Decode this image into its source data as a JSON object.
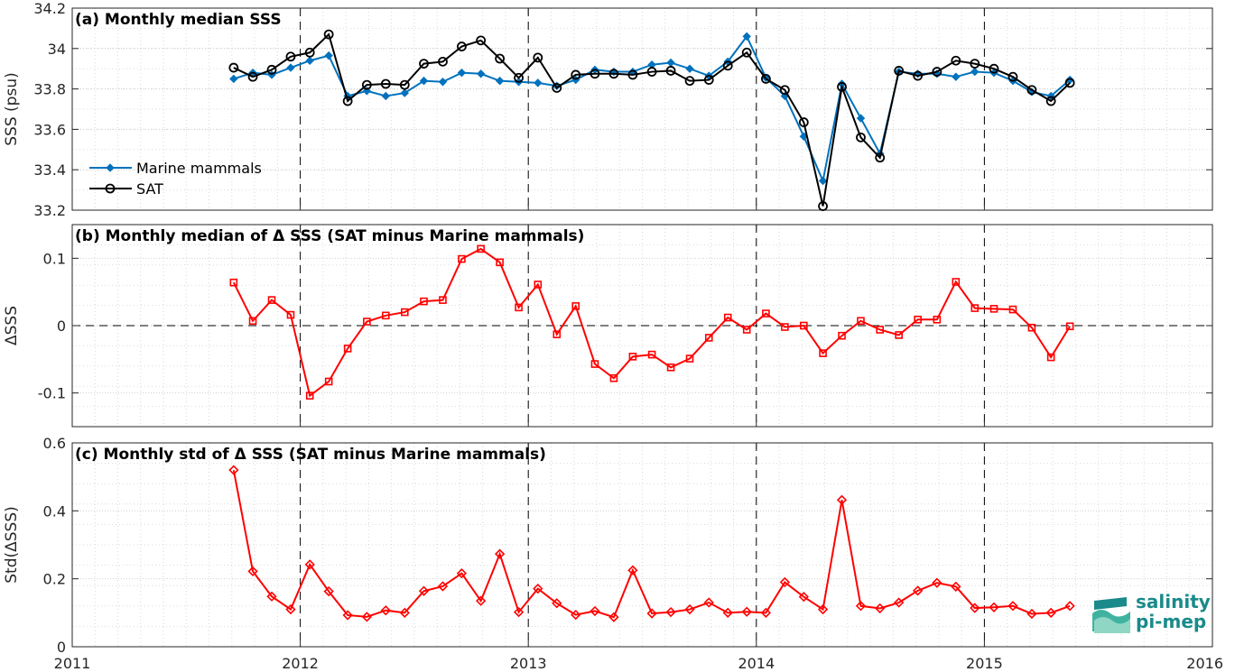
{
  "colors": {
    "marine": "#0072bd",
    "sat": "#000000",
    "delta": "#ff0000",
    "logo": "#1a8a8a"
  },
  "legend": {
    "marine": "Marine mammals",
    "sat": "SAT"
  },
  "logo": {
    "line1": "salinity",
    "line2": "pi-mep"
  },
  "x_axis": {
    "range": [
      2011,
      2016
    ],
    "ticks": [
      "2011",
      "2012",
      "2013",
      "2014",
      "2015",
      "2016"
    ],
    "year_lines": [
      2012,
      2013,
      2014,
      2015
    ]
  },
  "chart_data": [
    {
      "type": "line",
      "panel": "a",
      "title": "(a) Monthly median SSS",
      "ylabel": "SSS (psu)",
      "ylim": [
        33.2,
        34.2
      ],
      "yticks": [
        "33.2",
        "33.4",
        "33.6",
        "33.8",
        "34",
        "34.2"
      ],
      "grid": true,
      "legend_position": "lower-left",
      "x": [
        2011.708,
        2011.792,
        2011.875,
        2011.958,
        2012.042,
        2012.125,
        2012.208,
        2012.292,
        2012.375,
        2012.458,
        2012.542,
        2012.625,
        2012.708,
        2012.792,
        2012.875,
        2012.958,
        2013.042,
        2013.125,
        2013.208,
        2013.292,
        2013.375,
        2013.458,
        2013.542,
        2013.625,
        2013.708,
        2013.792,
        2013.875,
        2013.958,
        2014.042,
        2014.125,
        2014.208,
        2014.292,
        2014.375,
        2014.458,
        2014.542,
        2014.625,
        2014.708,
        2014.792,
        2014.875,
        2014.958,
        2015.042,
        2015.125,
        2015.208,
        2015.292,
        2015.375
      ],
      "series": [
        {
          "name": "Marine mammals",
          "values": [
            33.85,
            33.88,
            33.87,
            33.905,
            33.94,
            33.965,
            33.765,
            33.79,
            33.765,
            33.78,
            33.84,
            33.835,
            33.88,
            33.875,
            33.84,
            33.835,
            33.83,
            33.815,
            33.845,
            33.895,
            33.885,
            33.885,
            33.92,
            33.93,
            33.9,
            33.865,
            33.935,
            34.06,
            33.855,
            33.765,
            33.565,
            33.345,
            33.825,
            33.655,
            33.48,
            33.885,
            33.875,
            33.875,
            33.86,
            33.885,
            33.88,
            33.84,
            33.785,
            33.765,
            33.845
          ]
        },
        {
          "name": "SAT",
          "values": [
            33.905,
            33.86,
            33.895,
            33.96,
            33.98,
            34.07,
            33.74,
            33.82,
            33.825,
            33.82,
            33.925,
            33.935,
            34.01,
            34.04,
            33.95,
            33.855,
            33.955,
            33.805,
            33.87,
            33.875,
            33.875,
            33.87,
            33.885,
            33.89,
            33.84,
            33.845,
            33.915,
            33.98,
            33.85,
            33.795,
            33.635,
            33.22,
            33.81,
            33.56,
            33.46,
            33.89,
            33.865,
            33.885,
            33.94,
            33.925,
            33.9,
            33.86,
            33.795,
            33.74,
            33.83
          ]
        }
      ]
    },
    {
      "type": "line",
      "panel": "b",
      "title": "(b) Monthly median of Δ SSS (SAT minus Marine mammals)",
      "ylabel": "ΔSSS",
      "ylim": [
        -0.15,
        0.15
      ],
      "yticks": [
        "-0.1",
        "0",
        "0.1"
      ],
      "grid": true,
      "x": [
        2011.708,
        2011.792,
        2011.875,
        2011.958,
        2012.042,
        2012.125,
        2012.208,
        2012.292,
        2012.375,
        2012.458,
        2012.542,
        2012.625,
        2012.708,
        2012.792,
        2012.875,
        2012.958,
        2013.042,
        2013.125,
        2013.208,
        2013.292,
        2013.375,
        2013.458,
        2013.542,
        2013.625,
        2013.708,
        2013.792,
        2013.875,
        2013.958,
        2014.042,
        2014.125,
        2014.208,
        2014.292,
        2014.375,
        2014.458,
        2014.542,
        2014.625,
        2014.708,
        2014.792,
        2014.875,
        2014.958,
        2015.042,
        2015.125,
        2015.208,
        2015.292,
        2015.375
      ],
      "series": [
        {
          "name": "",
          "values": [
            0.064,
            0.007,
            0.038,
            0.016,
            -0.104,
            -0.083,
            -0.034,
            0.006,
            0.015,
            0.02,
            0.036,
            0.038,
            0.099,
            0.114,
            0.094,
            0.027,
            0.061,
            -0.013,
            0.029,
            -0.057,
            -0.078,
            -0.046,
            -0.043,
            -0.062,
            -0.049,
            -0.018,
            0.012,
            -0.006,
            0.018,
            -0.002,
            0.0,
            -0.041,
            -0.015,
            0.007,
            -0.006,
            -0.014,
            0.009,
            0.009,
            0.065,
            0.026,
            0.025,
            0.024,
            -0.003,
            -0.047,
            -0.001
          ]
        }
      ]
    },
    {
      "type": "line",
      "panel": "c",
      "title": "(c) Monthly std of Δ SSS (SAT minus Marine mammals)",
      "ylabel": "Std(ΔSSS)",
      "ylim": [
        0,
        0.6
      ],
      "yticks": [
        "0",
        "0.2",
        "0.4",
        "0.6"
      ],
      "grid": true,
      "x": [
        2011.708,
        2011.792,
        2011.875,
        2011.958,
        2012.042,
        2012.125,
        2012.208,
        2012.292,
        2012.375,
        2012.458,
        2012.542,
        2012.625,
        2012.708,
        2012.792,
        2012.875,
        2012.958,
        2013.042,
        2013.125,
        2013.208,
        2013.292,
        2013.375,
        2013.458,
        2013.542,
        2013.625,
        2013.708,
        2013.792,
        2013.875,
        2013.958,
        2014.042,
        2014.125,
        2014.208,
        2014.292,
        2014.375,
        2014.458,
        2014.542,
        2014.625,
        2014.708,
        2014.792,
        2014.875,
        2014.958,
        2015.042,
        2015.125,
        2015.208,
        2015.292,
        2015.375
      ],
      "series": [
        {
          "name": "",
          "values": [
            0.52,
            0.222,
            0.148,
            0.11,
            0.242,
            0.163,
            0.093,
            0.088,
            0.107,
            0.1,
            0.164,
            0.178,
            0.216,
            0.135,
            0.273,
            0.102,
            0.171,
            0.128,
            0.094,
            0.105,
            0.087,
            0.225,
            0.098,
            0.102,
            0.11,
            0.13,
            0.1,
            0.103,
            0.1,
            0.19,
            0.147,
            0.11,
            0.432,
            0.12,
            0.113,
            0.13,
            0.165,
            0.188,
            0.177,
            0.114,
            0.116,
            0.12,
            0.097,
            0.1,
            0.12
          ]
        }
      ]
    }
  ]
}
